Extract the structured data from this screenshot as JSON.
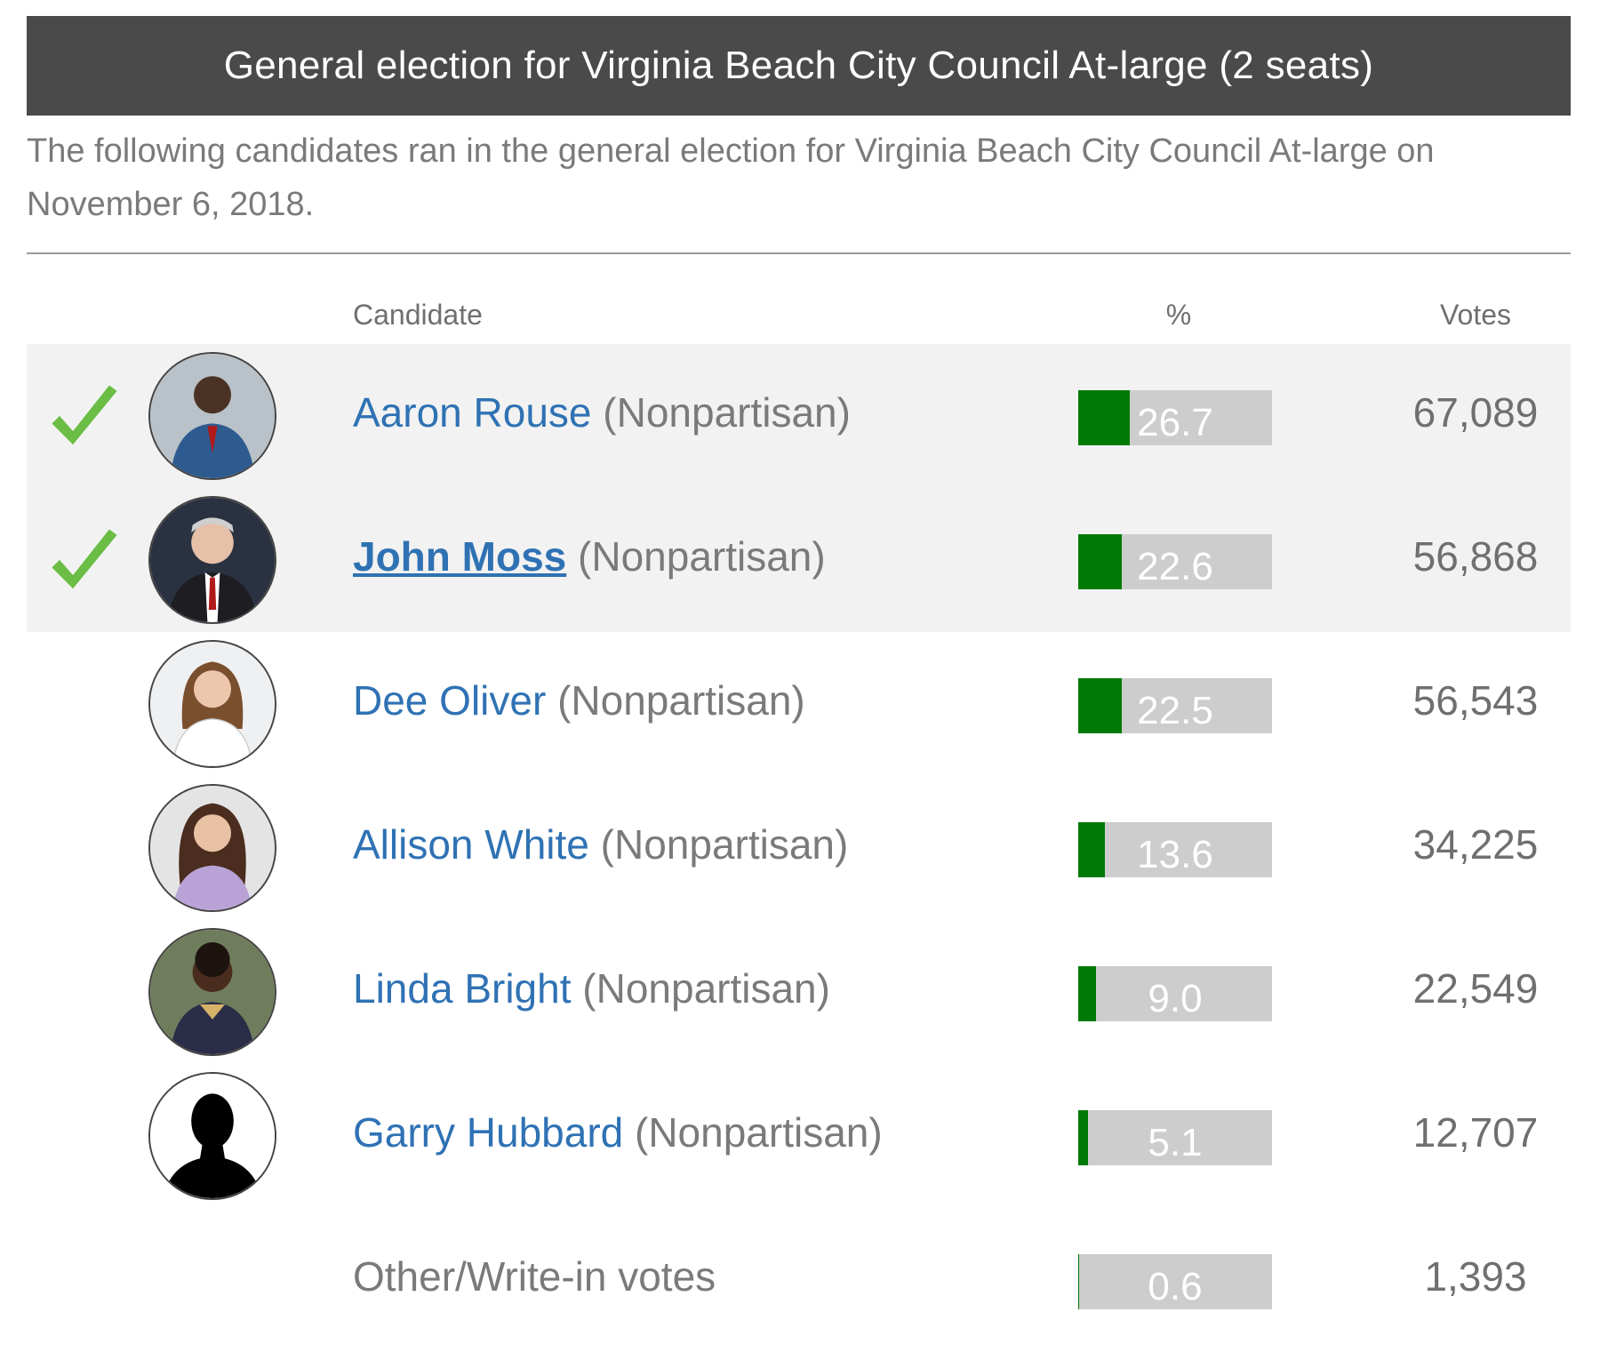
{
  "title": "General election for Virginia Beach City Council At-large (2 seats)",
  "description": "The following candidates ran in the general election for Virginia Beach City Council At-large on November 6, 2018.",
  "columns": {
    "candidate": "Candidate",
    "percent": "%",
    "votes": "Votes"
  },
  "colors": {
    "winner_bg": "#f2f2f2",
    "bar_fill": "#007a05",
    "bar_bg": "#cdcdcd",
    "check": "#6bbd45",
    "link": "#2f72b4"
  },
  "candidates": [
    {
      "name": "Aaron Rouse",
      "party": "(Nonpartisan)",
      "percent": "26.7",
      "percent_value": 26.7,
      "votes": "67,089",
      "winner": true,
      "photo_icon": "person-photo-icon"
    },
    {
      "name": "John Moss",
      "party": "(Nonpartisan)",
      "percent": "22.6",
      "percent_value": 22.6,
      "votes": "56,868",
      "winner": true,
      "bold": true,
      "photo_icon": "person-photo-icon"
    },
    {
      "name": "Dee Oliver",
      "party": "(Nonpartisan)",
      "percent": "22.5",
      "percent_value": 22.5,
      "votes": "56,543",
      "winner": false,
      "photo_icon": "person-photo-icon"
    },
    {
      "name": "Allison White",
      "party": "(Nonpartisan)",
      "percent": "13.6",
      "percent_value": 13.6,
      "votes": "34,225",
      "winner": false,
      "photo_icon": "person-photo-icon"
    },
    {
      "name": "Linda Bright",
      "party": "(Nonpartisan)",
      "percent": "9.0",
      "percent_value": 9.0,
      "votes": "22,549",
      "winner": false,
      "photo_icon": "person-photo-icon"
    },
    {
      "name": "Garry Hubbard",
      "party": "(Nonpartisan)",
      "percent": "5.1",
      "percent_value": 5.1,
      "votes": "12,707",
      "winner": false,
      "photo_icon": "silhouette-icon"
    }
  ],
  "other": {
    "label": "Other/Write-in votes",
    "percent": "0.6",
    "percent_value": 0.6,
    "votes": "1,393"
  }
}
